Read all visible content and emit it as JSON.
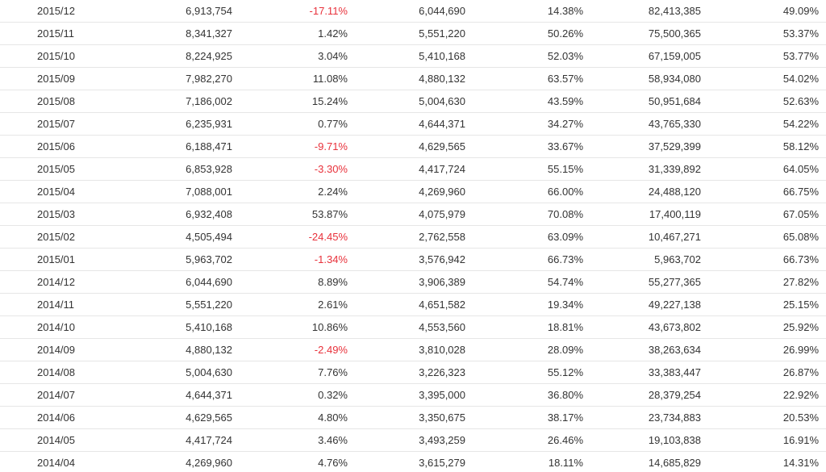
{
  "colors": {
    "text": "#333333",
    "negative": "#e8313b",
    "row_border": "#e6e6e6",
    "background": "#ffffff"
  },
  "rows": [
    {
      "month": "2015/12",
      "monthly": "6,913,754",
      "mom": "-17.11%",
      "prev_year": "6,044,690",
      "yoy": "14.38%",
      "cumulative": "82,413,385",
      "cum_yoy": "49.09%"
    },
    {
      "month": "2015/11",
      "monthly": "8,341,327",
      "mom": "1.42%",
      "prev_year": "5,551,220",
      "yoy": "50.26%",
      "cumulative": "75,500,365",
      "cum_yoy": "53.37%"
    },
    {
      "month": "2015/10",
      "monthly": "8,224,925",
      "mom": "3.04%",
      "prev_year": "5,410,168",
      "yoy": "52.03%",
      "cumulative": "67,159,005",
      "cum_yoy": "53.77%"
    },
    {
      "month": "2015/09",
      "monthly": "7,982,270",
      "mom": "11.08%",
      "prev_year": "4,880,132",
      "yoy": "63.57%",
      "cumulative": "58,934,080",
      "cum_yoy": "54.02%"
    },
    {
      "month": "2015/08",
      "monthly": "7,186,002",
      "mom": "15.24%",
      "prev_year": "5,004,630",
      "yoy": "43.59%",
      "cumulative": "50,951,684",
      "cum_yoy": "52.63%"
    },
    {
      "month": "2015/07",
      "monthly": "6,235,931",
      "mom": "0.77%",
      "prev_year": "4,644,371",
      "yoy": "34.27%",
      "cumulative": "43,765,330",
      "cum_yoy": "54.22%"
    },
    {
      "month": "2015/06",
      "monthly": "6,188,471",
      "mom": "-9.71%",
      "prev_year": "4,629,565",
      "yoy": "33.67%",
      "cumulative": "37,529,399",
      "cum_yoy": "58.12%"
    },
    {
      "month": "2015/05",
      "monthly": "6,853,928",
      "mom": "-3.30%",
      "prev_year": "4,417,724",
      "yoy": "55.15%",
      "cumulative": "31,339,892",
      "cum_yoy": "64.05%"
    },
    {
      "month": "2015/04",
      "monthly": "7,088,001",
      "mom": "2.24%",
      "prev_year": "4,269,960",
      "yoy": "66.00%",
      "cumulative": "24,488,120",
      "cum_yoy": "66.75%"
    },
    {
      "month": "2015/03",
      "monthly": "6,932,408",
      "mom": "53.87%",
      "prev_year": "4,075,979",
      "yoy": "70.08%",
      "cumulative": "17,400,119",
      "cum_yoy": "67.05%"
    },
    {
      "month": "2015/02",
      "monthly": "4,505,494",
      "mom": "-24.45%",
      "prev_year": "2,762,558",
      "yoy": "63.09%",
      "cumulative": "10,467,271",
      "cum_yoy": "65.08%"
    },
    {
      "month": "2015/01",
      "monthly": "5,963,702",
      "mom": "-1.34%",
      "prev_year": "3,576,942",
      "yoy": "66.73%",
      "cumulative": "5,963,702",
      "cum_yoy": "66.73%"
    },
    {
      "month": "2014/12",
      "monthly": "6,044,690",
      "mom": "8.89%",
      "prev_year": "3,906,389",
      "yoy": "54.74%",
      "cumulative": "55,277,365",
      "cum_yoy": "27.82%"
    },
    {
      "month": "2014/11",
      "monthly": "5,551,220",
      "mom": "2.61%",
      "prev_year": "4,651,582",
      "yoy": "19.34%",
      "cumulative": "49,227,138",
      "cum_yoy": "25.15%"
    },
    {
      "month": "2014/10",
      "monthly": "5,410,168",
      "mom": "10.86%",
      "prev_year": "4,553,560",
      "yoy": "18.81%",
      "cumulative": "43,673,802",
      "cum_yoy": "25.92%"
    },
    {
      "month": "2014/09",
      "monthly": "4,880,132",
      "mom": "-2.49%",
      "prev_year": "3,810,028",
      "yoy": "28.09%",
      "cumulative": "38,263,634",
      "cum_yoy": "26.99%"
    },
    {
      "month": "2014/08",
      "monthly": "5,004,630",
      "mom": "7.76%",
      "prev_year": "3,226,323",
      "yoy": "55.12%",
      "cumulative": "33,383,447",
      "cum_yoy": "26.87%"
    },
    {
      "month": "2014/07",
      "monthly": "4,644,371",
      "mom": "0.32%",
      "prev_year": "3,395,000",
      "yoy": "36.80%",
      "cumulative": "28,379,254",
      "cum_yoy": "22.92%"
    },
    {
      "month": "2014/06",
      "monthly": "4,629,565",
      "mom": "4.80%",
      "prev_year": "3,350,675",
      "yoy": "38.17%",
      "cumulative": "23,734,883",
      "cum_yoy": "20.53%"
    },
    {
      "month": "2014/05",
      "monthly": "4,417,724",
      "mom": "3.46%",
      "prev_year": "3,493,259",
      "yoy": "26.46%",
      "cumulative": "19,103,838",
      "cum_yoy": "16.91%"
    },
    {
      "month": "2014/04",
      "monthly": "4,269,960",
      "mom": "4.76%",
      "prev_year": "3,615,279",
      "yoy": "18.11%",
      "cumulative": "14,685,829",
      "cum_yoy": "14.31%"
    }
  ]
}
